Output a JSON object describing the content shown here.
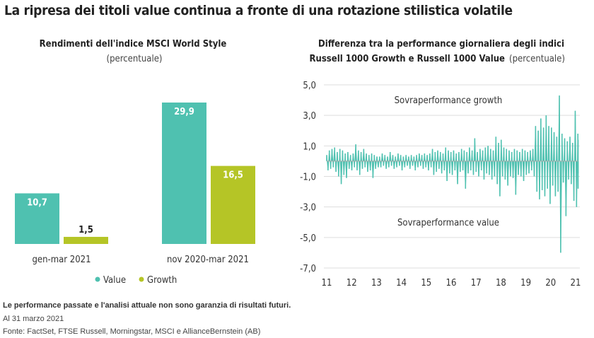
{
  "title": "La ripresa dei titoli value continua a fronte di una rotazione stilistica volatile",
  "chart_data": [
    {
      "type": "bar",
      "title": "Rendimenti dell'indice MSCI World Style",
      "subtitle": "(percentuale)",
      "categories": [
        "gen-mar 2021",
        "nov 2020-mar 2021"
      ],
      "series": [
        {
          "name": "Value",
          "color": "#4fc1b0",
          "values": [
            10.7,
            29.9
          ]
        },
        {
          "name": "Growth",
          "color": "#b5c526",
          "values": [
            1.5,
            16.5
          ]
        }
      ],
      "data_labels": [
        [
          "10,7",
          "29,9"
        ],
        [
          "1,5",
          "16,5"
        ]
      ],
      "ylim": [
        0,
        30
      ],
      "legend": "bottom",
      "grid": false
    },
    {
      "type": "line",
      "title_line1": "Differenza tra la performance giornaliera degli indici",
      "title_line2": "Russell 1000 Growth e Russell 1000 Value",
      "subtitle": "(percentuale)",
      "color": "#4fc1b0",
      "xlim": [
        2011,
        2021.25
      ],
      "x_ticks": [
        "11",
        "12",
        "13",
        "14",
        "15",
        "16",
        "17",
        "18",
        "19",
        "20",
        "21"
      ],
      "ylim": [
        -7,
        5
      ],
      "y_ticks": [
        "5,0",
        "3,0",
        "1,0",
        "-1,0",
        "-3,0",
        "-5,0",
        "-7,0"
      ],
      "y_tick_values": [
        5,
        3,
        1,
        -1,
        -3,
        -5,
        -7
      ],
      "grid": true,
      "annotations": [
        "Sovraperformance growth",
        "Sovraperformance value"
      ],
      "values": [
        0.4,
        -0.6,
        0.7,
        -0.5,
        0.8,
        -0.4,
        0.9,
        -0.7,
        0.6,
        -1.0,
        0.8,
        -1.5,
        0.7,
        -0.9,
        0.5,
        -1.1,
        0.6,
        -0.5,
        0.4,
        -0.6,
        0.5,
        -0.4,
        1.1,
        -0.6,
        0.7,
        -0.9,
        0.6,
        -0.5,
        0.8,
        -0.4,
        0.5,
        -0.7,
        0.4,
        -0.6,
        0.5,
        -1.1,
        0.4,
        -0.5,
        0.3,
        -0.4,
        0.3,
        -0.4,
        0.5,
        -0.3,
        0.4,
        -0.5,
        0.3,
        -0.4,
        0.6,
        -0.3,
        0.4,
        -0.5,
        0.3,
        -0.4,
        0.5,
        -0.3,
        0.4,
        -0.6,
        0.3,
        -0.4,
        0.4,
        -0.3,
        0.3,
        -0.5,
        0.4,
        -0.3,
        0.3,
        -0.6,
        0.4,
        -0.4,
        0.5,
        -0.3,
        0.4,
        -0.5,
        0.5,
        -0.4,
        0.4,
        -0.6,
        0.5,
        -0.4,
        0.8,
        -0.9,
        0.6,
        -0.7,
        0.7,
        -0.5,
        0.6,
        -0.8,
        0.5,
        -0.6,
        0.9,
        -1.3,
        0.7,
        -0.8,
        0.6,
        -0.9,
        0.7,
        -0.6,
        0.5,
        -1.5,
        0.6,
        -0.7,
        0.8,
        -0.6,
        0.7,
        -1.8,
        0.6,
        -0.8,
        0.9,
        -0.6,
        0.7,
        -0.9,
        1.5,
        -0.7,
        0.6,
        -1.0,
        0.8,
        -0.6,
        0.7,
        -1.2,
        0.9,
        -0.8,
        1.0,
        -0.9,
        0.8,
        -1.2,
        0.7,
        -1.0,
        1.6,
        -1.5,
        1.2,
        -2.3,
        1.4,
        -1.0,
        0.9,
        -1.2,
        0.8,
        -1.6,
        0.7,
        -1.0,
        0.6,
        -1.1,
        0.8,
        -2.2,
        0.7,
        -0.9,
        0.6,
        -1.0,
        0.8,
        -1.3,
        0.7,
        -0.9,
        0.6,
        -0.8,
        0.7,
        -0.6,
        0.8,
        -1.0,
        2.3,
        -2.0,
        2.0,
        -2.5,
        2.8,
        -1.9,
        2.2,
        -2.3,
        3.0,
        -1.8,
        2.3,
        -2.8,
        2.2,
        -1.6,
        1.9,
        -2.3,
        1.6,
        -2.0,
        4.3,
        -6.0,
        1.8,
        -1.4,
        1.5,
        -3.6,
        1.3,
        -1.2,
        1.6,
        -1.5,
        1.2,
        -2.6,
        3.3,
        -3.0,
        1.8,
        -1.8,
        1.4,
        -0.8
      ]
    }
  ],
  "footnote": {
    "disclaimer": "Le performance passate e l'analisi attuale non sono garanzia di risultati futuri.",
    "date": "Al 31 marzo 2021",
    "source": "Fonte: FactSet, FTSE Russell, Morningstar, MSCI e AllianceBernstein (AB)"
  }
}
